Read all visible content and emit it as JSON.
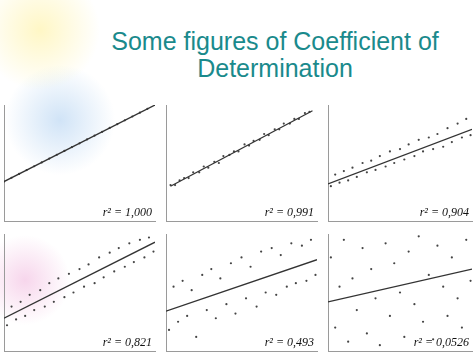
{
  "title": "Some figures of Coefficient of Determination",
  "chart_data": [
    {
      "type": "scatter",
      "annotation": "r² = 1,000",
      "xlim": [
        0,
        100
      ],
      "ylim": [
        0,
        100
      ],
      "tick_labels": false,
      "grid": false,
      "series": [
        {
          "type": "scatter",
          "marker": "dot",
          "color": "#444444",
          "x": [
            0,
            5,
            10,
            15,
            20,
            25,
            30,
            35,
            40,
            45,
            50,
            55,
            60,
            65,
            70,
            75,
            80,
            85,
            90,
            95,
            100
          ],
          "values": [
            34,
            37.3,
            40.6,
            43.9,
            47.2,
            50.5,
            53.8,
            57.1,
            60.4,
            63.7,
            67,
            70.3,
            73.6,
            76.9,
            80.2,
            83.5,
            86.8,
            90.1,
            93.4,
            96.7,
            100
          ]
        },
        {
          "type": "line",
          "line_style": "solid",
          "color": "#333333",
          "x": [
            0,
            100
          ],
          "values": [
            34,
            100
          ]
        }
      ]
    },
    {
      "type": "scatter",
      "annotation": "r² = 0,991",
      "xlim": [
        0,
        100
      ],
      "ylim": [
        0,
        100
      ],
      "tick_labels": false,
      "grid": false,
      "series": [
        {
          "type": "scatter",
          "marker": "dot",
          "color": "#444444",
          "x": [
            3,
            6,
            9,
            12,
            15,
            18,
            22,
            25,
            28,
            32,
            35,
            38,
            42,
            45,
            48,
            52,
            55,
            58,
            62,
            65,
            68,
            72,
            75,
            78,
            82,
            85,
            88,
            92,
            95
          ],
          "values": [
            31,
            31,
            35,
            37,
            37,
            42,
            42,
            47,
            46,
            51,
            50,
            56,
            57,
            60,
            60,
            66,
            65,
            69,
            70,
            75,
            74,
            79,
            79,
            84,
            84,
            88,
            88,
            93,
            94
          ]
        },
        {
          "type": "line",
          "line_style": "solid",
          "color": "#333333",
          "x": [
            3,
            97
          ],
          "values": [
            30,
            95
          ]
        }
      ]
    },
    {
      "type": "scatter",
      "annotation": "r² = 0,904",
      "xlim": [
        0,
        100
      ],
      "ylim": [
        0,
        100
      ],
      "tick_labels": false,
      "grid": false,
      "series": [
        {
          "type": "scatter",
          "marker": "dot",
          "color": "#444444",
          "x": [
            2,
            5,
            8,
            11,
            14,
            17,
            20,
            24,
            27,
            30,
            33,
            36,
            40,
            43,
            46,
            50,
            53,
            56,
            60,
            63,
            66,
            70,
            73,
            76,
            80,
            83,
            86,
            90,
            93,
            96,
            99
          ],
          "values": [
            30,
            40,
            33,
            43,
            35,
            46,
            38,
            50,
            42,
            52,
            44,
            56,
            47,
            60,
            50,
            62,
            53,
            66,
            56,
            70,
            60,
            72,
            62,
            75,
            64,
            80,
            68,
            84,
            72,
            88,
            74
          ]
        },
        {
          "type": "line",
          "line_style": "solid",
          "color": "#333333",
          "x": [
            0,
            100
          ],
          "values": [
            32,
            79
          ]
        }
      ]
    },
    {
      "type": "scatter",
      "annotation": "r² = 0,821",
      "xlim": [
        0,
        100
      ],
      "ylim": [
        0,
        100
      ],
      "tick_labels": false,
      "grid": false,
      "series": [
        {
          "type": "scatter",
          "marker": "dot",
          "color": "#444444",
          "x": [
            2,
            5,
            8,
            11,
            14,
            17,
            20,
            24,
            27,
            30,
            33,
            36,
            40,
            43,
            46,
            50,
            53,
            56,
            60,
            63,
            66,
            70,
            73,
            76,
            80,
            83,
            86,
            90,
            93,
            96,
            99
          ],
          "values": [
            22,
            38,
            27,
            42,
            30,
            48,
            35,
            52,
            38,
            58,
            42,
            62,
            46,
            66,
            50,
            70,
            55,
            74,
            58,
            80,
            63,
            84,
            68,
            88,
            72,
            92,
            76,
            95,
            80,
            97,
            85
          ]
        },
        {
          "type": "line",
          "line_style": "solid",
          "color": "#333333",
          "x": [
            0,
            100
          ],
          "values": [
            28,
            93
          ]
        }
      ]
    },
    {
      "type": "scatter",
      "annotation": "r² = 0,493",
      "xlim": [
        0,
        100
      ],
      "ylim": [
        0,
        100
      ],
      "tick_labels": false,
      "grid": false,
      "series": [
        {
          "type": "scatter",
          "marker": "dot",
          "color": "#444444",
          "x": [
            2,
            5,
            8,
            11,
            14,
            17,
            20,
            24,
            27,
            30,
            33,
            36,
            40,
            43,
            46,
            50,
            53,
            56,
            60,
            63,
            66,
            70,
            73,
            76,
            80,
            83,
            86,
            90,
            93,
            96,
            99
          ],
          "values": [
            18,
            55,
            25,
            60,
            30,
            52,
            12,
            65,
            35,
            70,
            28,
            62,
            40,
            75,
            32,
            80,
            45,
            72,
            38,
            85,
            50,
            88,
            48,
            82,
            55,
            92,
            58,
            90,
            60,
            95,
            65
          ]
        },
        {
          "type": "line",
          "line_style": "solid",
          "color": "#333333",
          "x": [
            0,
            100
          ],
          "values": [
            34,
            78
          ]
        }
      ]
    },
    {
      "type": "scatter",
      "annotation": "r² = 0,0526",
      "xlim": [
        0,
        100
      ],
      "ylim": [
        0,
        100
      ],
      "tick_labels": false,
      "grid": false,
      "series": [
        {
          "type": "scatter",
          "marker": "dot",
          "color": "#444444",
          "x": [
            2,
            5,
            8,
            11,
            14,
            17,
            20,
            24,
            27,
            30,
            33,
            36,
            40,
            43,
            46,
            50,
            53,
            56,
            60,
            63,
            66,
            70,
            73,
            76,
            80,
            83,
            86,
            90,
            93,
            96,
            99
          ],
          "values": [
            80,
            20,
            55,
            95,
            8,
            62,
            35,
            88,
            15,
            70,
            45,
            5,
            92,
            30,
            75,
            50,
            12,
            85,
            40,
            98,
            25,
            65,
            10,
            90,
            55,
            30,
            80,
            45,
            20,
            95,
            60
          ]
        },
        {
          "type": "line",
          "line_style": "solid",
          "color": "#333333",
          "x": [
            0,
            100
          ],
          "values": [
            42,
            70
          ]
        }
      ]
    }
  ]
}
